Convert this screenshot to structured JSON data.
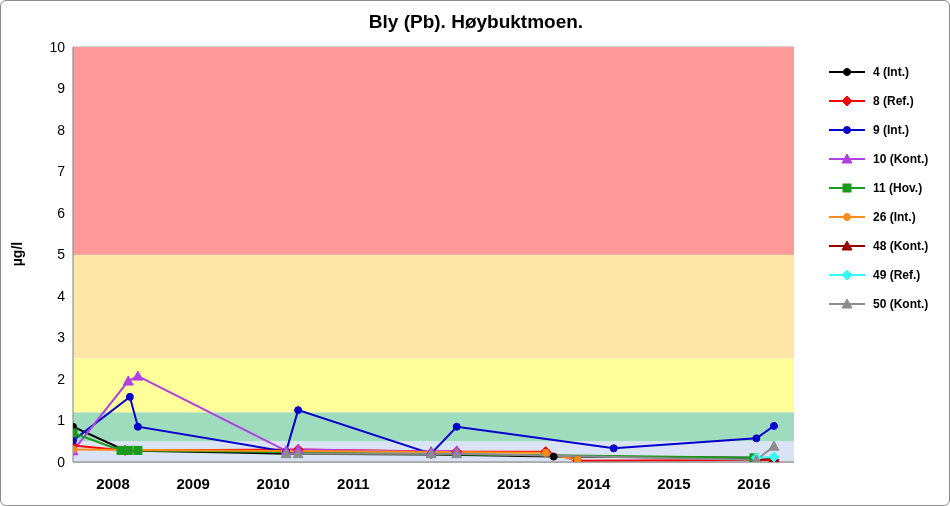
{
  "chart_data": {
    "type": "line",
    "title": "Bly (Pb). Høybuktmoen.",
    "y_label": "µg/l",
    "xlim": [
      2008,
      2017
    ],
    "xticks": [
      {
        "value": 2008.5,
        "label": "2008"
      },
      {
        "value": 2009.5,
        "label": "2009"
      },
      {
        "value": 2010.5,
        "label": "2010"
      },
      {
        "value": 2011.5,
        "label": "2011"
      },
      {
        "value": 2012.5,
        "label": "2012"
      },
      {
        "value": 2013.5,
        "label": "2013"
      },
      {
        "value": 2014.5,
        "label": "2014"
      },
      {
        "value": 2015.5,
        "label": "2015"
      },
      {
        "value": 2016.5,
        "label": "2016"
      }
    ],
    "ylim": [
      0,
      10
    ],
    "yticks": [
      0,
      1,
      2,
      3,
      4,
      5,
      6,
      7,
      8,
      9,
      10
    ],
    "grid": true,
    "legend": "right",
    "bands": [
      {
        "from": 0,
        "to": 0.5,
        "color": "#d9e3f3"
      },
      {
        "from": 0.5,
        "to": 1.2,
        "color": "#9fdcbd"
      },
      {
        "from": 1.2,
        "to": 2.5,
        "color": "#ffff99"
      },
      {
        "from": 2.5,
        "to": 5,
        "color": "#fde6a8"
      },
      {
        "from": 5,
        "to": 10,
        "color": "#ff9a9a"
      }
    ],
    "series": [
      {
        "name": "4 (Int.)",
        "color": "#000000",
        "marker": "circle",
        "x": [
          2008.0,
          2008.65,
          2010.66,
          2012.47,
          2014.0,
          2016.5
        ],
        "values": [
          0.85,
          0.28,
          0.2,
          0.18,
          0.13,
          0.1
        ]
      },
      {
        "name": "8 (Ref.)",
        "color": "#ff0000",
        "marker": "diamond",
        "x": [
          2008.0,
          2008.65,
          2010.81,
          2012.79,
          2013.9,
          2014.3,
          2016.75
        ],
        "values": [
          0.4,
          0.28,
          0.3,
          0.25,
          0.25,
          0.03,
          0.05
        ]
      },
      {
        "name": "9 (Int.)",
        "color": "#0000cc",
        "marker": "circle",
        "x": [
          2008.0,
          2008.71,
          2008.81,
          2010.66,
          2010.81,
          2012.47,
          2012.79,
          2014.75,
          2016.53,
          2016.75
        ],
        "values": [
          0.52,
          1.57,
          0.85,
          0.25,
          1.25,
          0.2,
          0.85,
          0.33,
          0.57,
          0.87
        ]
      },
      {
        "name": "10 (Kont.)",
        "color": "#b040e0",
        "marker": "triangle",
        "x": [
          2008.0,
          2008.69,
          2008.81,
          2010.66,
          2010.81,
          2012.47,
          2012.79
        ],
        "values": [
          0.27,
          1.95,
          2.07,
          0.27,
          0.3,
          0.25,
          0.27
        ]
      },
      {
        "name": "11 (Hov.)",
        "color": "#1a9a1a",
        "marker": "square",
        "x": [
          2008.0,
          2008.6,
          2008.69,
          2008.81,
          2016.5
        ],
        "values": [
          0.7,
          0.28,
          0.28,
          0.28,
          0.1
        ]
      },
      {
        "name": "26 (Int.)",
        "color": "#ff8c1a",
        "marker": "circle",
        "x": [
          2008.0,
          2013.9,
          2014.3
        ],
        "values": [
          0.3,
          0.22,
          0.05
        ]
      },
      {
        "name": "48 (Kont.)",
        "color": "#990000",
        "marker": "triangle",
        "x": [
          2016.53,
          2016.75
        ],
        "values": [
          0.05,
          0.1
        ]
      },
      {
        "name": "49 (Ref.)",
        "color": "#33ffff",
        "marker": "diamond",
        "x": [
          2016.53,
          2016.75
        ],
        "values": [
          0.1,
          0.12
        ]
      },
      {
        "name": "50 (Kont.)",
        "color": "#8c8c8c",
        "marker": "triangle",
        "x": [
          2010.66,
          2010.81,
          2012.47,
          2012.79,
          2016.53,
          2016.75
        ],
        "values": [
          0.2,
          0.2,
          0.2,
          0.2,
          0.05,
          0.38
        ]
      }
    ]
  }
}
